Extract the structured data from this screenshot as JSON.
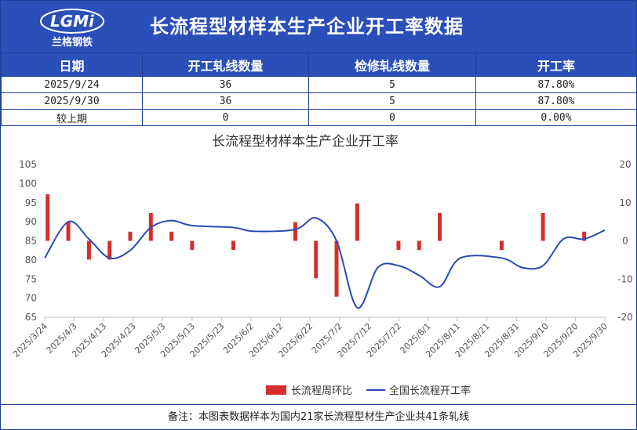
{
  "header": {
    "title": "长流程型材样本生产企业开工率数据",
    "logo_text": "LGMi",
    "logo_subtext": "兰格钢铁"
  },
  "table": {
    "headers": [
      "日期",
      "开工轧线数量",
      "检修轧线数量",
      "开工率"
    ],
    "rows": [
      [
        "2025/9/24",
        "36",
        "5",
        "87.80%"
      ],
      [
        "2025/9/30",
        "36",
        "5",
        "87.80%"
      ],
      [
        "较上期",
        "0",
        "0",
        "0.00%"
      ]
    ]
  },
  "footer": {
    "note": "备注：本图表数据样本为国内21家长流程型材生产企业共41条轧线"
  },
  "colors": {
    "header_bg": "#2b4fb8",
    "bar": "#d32f2f",
    "line": "#2a4bb5"
  },
  "chart_data": {
    "type": "bar+line",
    "title": "长流程型材样本生产企业开工率",
    "x_ticks": [
      "2025/3/24",
      "2025/4/3",
      "2025/4/13",
      "2025/4/23",
      "2025/5/3",
      "2025/5/13",
      "2025/5/23",
      "2025/6/2",
      "2025/6/12",
      "2025/6/22",
      "2025/7/2",
      "2025/7/12",
      "2025/7/22",
      "2025/8/1",
      "2025/8/11",
      "2025/8/21",
      "2025/8/31",
      "2025/9/10",
      "2025/9/20",
      "2025/9/30"
    ],
    "x_range": [
      "2025/3/24",
      "2025/9/30"
    ],
    "y_left": {
      "min": 65,
      "max": 105,
      "ticks": [
        65,
        70,
        75,
        80,
        85,
        90,
        95,
        100,
        105
      ]
    },
    "y_right": {
      "min": -20,
      "max": 20,
      "ticks": [
        -20,
        -10,
        0,
        10,
        20
      ]
    },
    "legend": {
      "position": "bottom"
    },
    "series": [
      {
        "name": "长流程周环比",
        "type": "bar",
        "axis": "right",
        "points": [
          {
            "x": "2025/3/25",
            "y": 12.2
          },
          {
            "x": "2025/4/1",
            "y": 4.9
          },
          {
            "x": "2025/4/8",
            "y": -4.9
          },
          {
            "x": "2025/4/15",
            "y": -4.9
          },
          {
            "x": "2025/4/22",
            "y": 2.4
          },
          {
            "x": "2025/4/29",
            "y": 7.3
          },
          {
            "x": "2025/5/6",
            "y": 2.4
          },
          {
            "x": "2025/5/13",
            "y": -2.4
          },
          {
            "x": "2025/5/27",
            "y": -2.4
          },
          {
            "x": "2025/6/17",
            "y": 4.9
          },
          {
            "x": "2025/6/24",
            "y": -9.8
          },
          {
            "x": "2025/7/1",
            "y": -14.6
          },
          {
            "x": "2025/7/8",
            "y": 9.8
          },
          {
            "x": "2025/7/22",
            "y": -2.4
          },
          {
            "x": "2025/7/29",
            "y": -2.4
          },
          {
            "x": "2025/8/5",
            "y": 7.3
          },
          {
            "x": "2025/8/26",
            "y": -2.4
          },
          {
            "x": "2025/9/9",
            "y": 7.3
          },
          {
            "x": "2025/9/23",
            "y": 2.4
          }
        ]
      },
      {
        "name": "全国长流程开工率",
        "type": "line",
        "axis": "left",
        "points": [
          {
            "x": "2025/3/24",
            "y": 80.5
          },
          {
            "x": "2025/4/1",
            "y": 90.0
          },
          {
            "x": "2025/4/8",
            "y": 85.5
          },
          {
            "x": "2025/4/15",
            "y": 80.5
          },
          {
            "x": "2025/4/22",
            "y": 82.5
          },
          {
            "x": "2025/4/29",
            "y": 88.5
          },
          {
            "x": "2025/5/6",
            "y": 90.3
          },
          {
            "x": "2025/5/13",
            "y": 89.0
          },
          {
            "x": "2025/5/27",
            "y": 88.5
          },
          {
            "x": "2025/6/3",
            "y": 87.5
          },
          {
            "x": "2025/6/17",
            "y": 88.0
          },
          {
            "x": "2025/6/24",
            "y": 91.0
          },
          {
            "x": "2025/7/1",
            "y": 85.0
          },
          {
            "x": "2025/7/8",
            "y": 67.5
          },
          {
            "x": "2025/7/15",
            "y": 78.0
          },
          {
            "x": "2025/7/22",
            "y": 78.5
          },
          {
            "x": "2025/7/29",
            "y": 76.0
          },
          {
            "x": "2025/8/5",
            "y": 73.0
          },
          {
            "x": "2025/8/12",
            "y": 80.5
          },
          {
            "x": "2025/8/26",
            "y": 80.5
          },
          {
            "x": "2025/9/2",
            "y": 78.0
          },
          {
            "x": "2025/9/9",
            "y": 78.5
          },
          {
            "x": "2025/9/16",
            "y": 85.5
          },
          {
            "x": "2025/9/23",
            "y": 85.5
          },
          {
            "x": "2025/9/30",
            "y": 87.8
          }
        ]
      }
    ]
  }
}
